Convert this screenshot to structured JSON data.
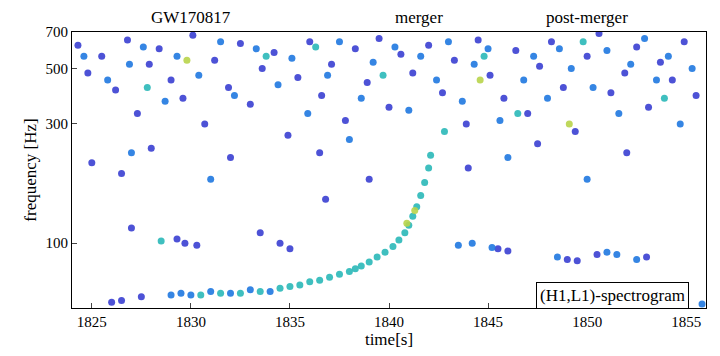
{
  "chart_data": {
    "type": "scatter",
    "x_label": "time[s]",
    "y_label": "frequency [Hz]",
    "log": "y",
    "xlim": [
      1824,
      1856
    ],
    "xticks": [
      1825,
      1830,
      1835,
      1840,
      1845,
      1850,
      1855
    ],
    "ylim": [
      55,
      700
    ],
    "yticks": [
      100,
      300,
      500,
      700
    ],
    "grid": false,
    "marker": "circle",
    "annotations": [
      {
        "text": "GW170817",
        "x": 1830
      },
      {
        "text": "merger",
        "x": 1841.5
      },
      {
        "text": "post-merger",
        "x": 1850
      },
      {
        "text": "(H1,L1)-spectrogram",
        "x": 1851.3,
        "y": 62,
        "boxed": true
      }
    ],
    "series": [
      {
        "color": "#3a3fd2",
        "x": [
          1824.3,
          1824.8,
          1825.5,
          1826.2,
          1826.8,
          1827.3,
          1827.9,
          1828.4,
          1829.0,
          1829.6,
          1830.1,
          1830.7,
          1831.2,
          1831.9,
          1832.5,
          1833.0,
          1833.6,
          1834.2,
          1834.9,
          1835.4,
          1836.0,
          1836.6,
          1837.1,
          1837.8,
          1838.3,
          1838.9,
          1839.5,
          1840.0,
          1840.6,
          1841.2,
          1842.0,
          1842.7,
          1843.3,
          1843.9,
          1844.5,
          1845.1,
          1845.8,
          1846.4,
          1847.0,
          1847.6,
          1848.2,
          1848.8,
          1849.4,
          1850.0,
          1850.6,
          1851.2,
          1851.9,
          1852.5,
          1853.1,
          1853.7,
          1854.3,
          1854.9,
          1855.5,
          1825.0,
          1826.5,
          1828.0,
          1832.0,
          1836.5,
          1839.0,
          1844.0,
          1847.5,
          1852.0,
          1829.3,
          1829.7,
          1830.3,
          1826.0,
          1826.5,
          1827.5,
          1845.5,
          1846.0,
          1849.0,
          1849.5,
          1850.5,
          1853.0,
          1827.0,
          1833.5,
          1836.8,
          1835.0,
          1834.5
        ],
        "values": [
          620,
          480,
          560,
          410,
          650,
          330,
          520,
          600,
          450,
          380,
          680,
          300,
          540,
          420,
          630,
          360,
          500,
          580,
          270,
          460,
          640,
          390,
          520,
          310,
          600,
          440,
          660,
          350,
          570,
          480,
          620,
          400,
          540,
          300,
          650,
          470,
          380,
          590,
          330,
          510,
          640,
          420,
          280,
          560,
          690,
          400,
          480,
          610,
          350,
          530,
          450,
          640,
          390,
          210,
          190,
          240,
          220,
          230,
          180,
          200,
          250,
          230,
          104,
          100,
          98,
          58,
          59,
          61,
          95,
          93,
          86,
          85,
          90,
          88,
          115,
          110,
          150,
          95,
          100
        ]
      },
      {
        "color": "#1f78e0",
        "x": [
          1824.6,
          1825.8,
          1826.9,
          1827.6,
          1828.7,
          1829.3,
          1830.4,
          1831.5,
          1832.2,
          1833.3,
          1834.4,
          1835.1,
          1835.9,
          1836.9,
          1837.5,
          1838.6,
          1839.2,
          1840.3,
          1841.0,
          1841.6,
          1842.4,
          1843.0,
          1843.7,
          1844.3,
          1845.0,
          1845.6,
          1846.8,
          1847.3,
          1848.0,
          1848.6,
          1849.2,
          1850.3,
          1851.0,
          1851.6,
          1852.2,
          1852.9,
          1853.5,
          1854.1,
          1854.7,
          1855.3,
          1827.0,
          1831.0,
          1838.0,
          1846.0,
          1850.0,
          1829.0,
          1829.5,
          1830.0,
          1831.0,
          1832.0,
          1833.0,
          1834.0,
          1843.5,
          1844.2,
          1845.2,
          1848.5,
          1851.0,
          1851.5,
          1852.5,
          1855.8
        ],
        "values": [
          560,
          450,
          520,
          610,
          370,
          560,
          470,
          640,
          390,
          600,
          430,
          550,
          330,
          470,
          640,
          380,
          530,
          610,
          340,
          560,
          450,
          640,
          370,
          520,
          600,
          310,
          450,
          560,
          380,
          600,
          500,
          420,
          590,
          330,
          520,
          660,
          450,
          560,
          300,
          500,
          230,
          180,
          260,
          220,
          180,
          62,
          63,
          62,
          64,
          63,
          65,
          64,
          98,
          100,
          96,
          88,
          92,
          90,
          86,
          57
        ]
      },
      {
        "color": "#2ab8b8",
        "x": [
          1830.5,
          1831.5,
          1832.5,
          1833.5,
          1834.5,
          1835.0,
          1835.5,
          1836.0,
          1836.5,
          1837.0,
          1837.5,
          1838.0,
          1838.3,
          1838.6,
          1839.0,
          1839.4,
          1839.8,
          1840.2,
          1840.5,
          1840.8,
          1841.0,
          1841.2,
          1841.4,
          1841.6,
          1841.8,
          1842.0,
          1842.1,
          1828.5,
          1827.8,
          1833.8,
          1839.7,
          1844.8,
          1849.8,
          1846.5,
          1853.9,
          1842.8,
          1836.3
        ],
        "values": [
          62,
          63,
          63,
          64,
          66,
          67,
          68,
          70,
          71,
          73,
          75,
          77,
          79,
          81,
          84,
          88,
          92,
          97,
          103,
          110,
          118,
          128,
          140,
          155,
          175,
          200,
          225,
          102,
          420,
          560,
          470,
          560,
          640,
          330,
          380,
          280,
          610
        ]
      },
      {
        "color": "#b8d44a",
        "x": [
          1840.9,
          1841.3,
          1849.1,
          1829.8,
          1844.6
        ],
        "values": [
          120,
          135,
          300,
          540,
          450
        ]
      }
    ]
  }
}
